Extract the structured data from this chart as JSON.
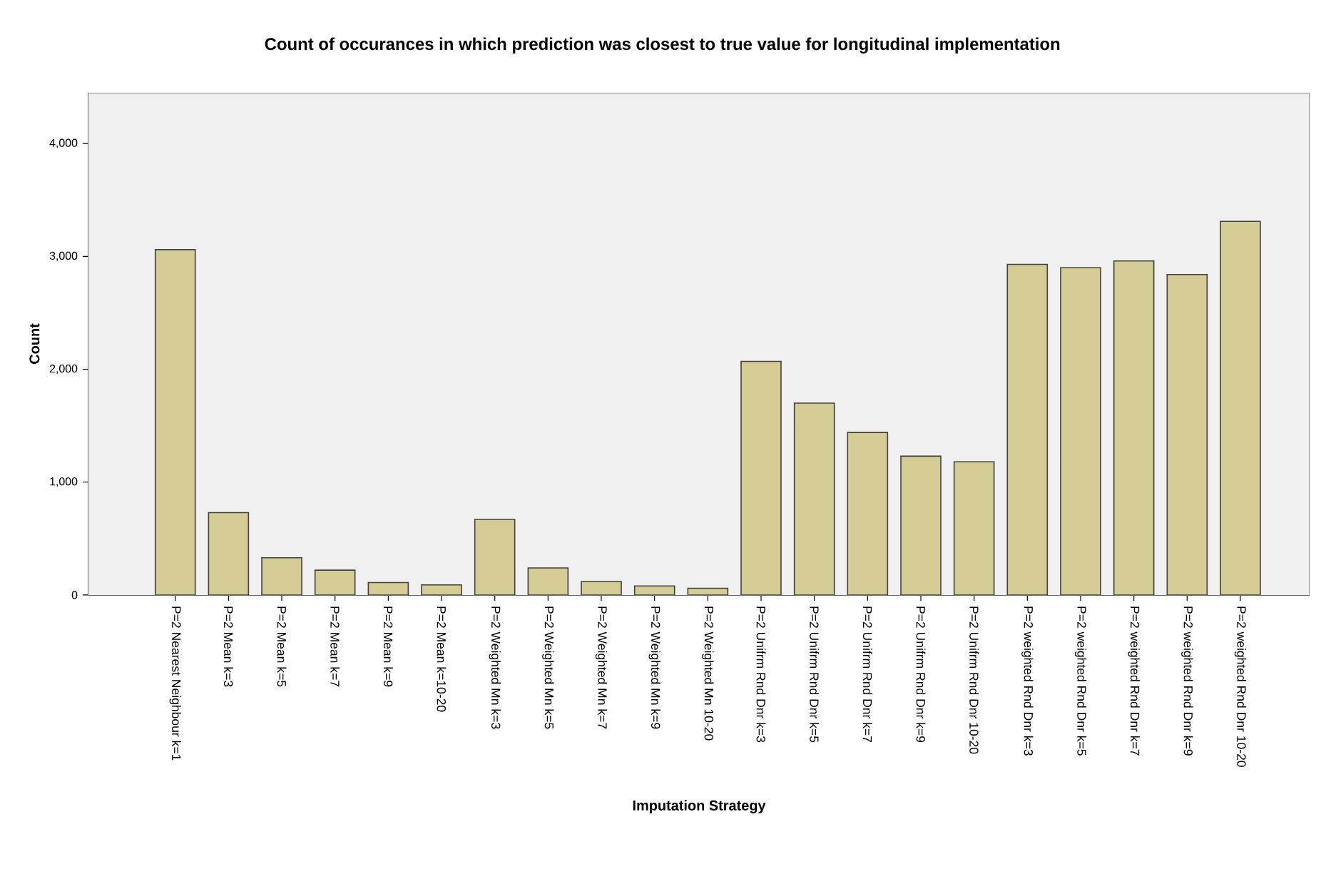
{
  "chart_data": {
    "type": "bar",
    "title": "Count of occurances in which prediction was closest to true value for longitudinal implementation",
    "xlabel": "Imputation Strategy",
    "ylabel": "Count",
    "categories": [
      "P=2 Nearest Neighbour k=1",
      "P=2 Mean k=3",
      "P=2 Mean k=5",
      "P=2 Mean k=7",
      "P=2 Mean k=9",
      "P=2 Mean k=10-20",
      "P=2 Weighted Mn k=3",
      "P=2 Weighted Mn k=5",
      "P=2 Weighted Mn k=7",
      "P=2 Weighted Mn  k=9",
      "P=2 Weighted Mn  10-20",
      "P=2 Unifrm Rnd Dnr k=3",
      "P=2 Unifrm Rnd Dnr k=5",
      "P=2 Unifrm Rnd Dnr k=7",
      "P=2 Unifrm Rnd Dnr k=9",
      "P=2 Unifrm Rnd Dnr  10-20",
      "P=2 weighted Rnd Dnr k=3",
      "P=2 weighted Rnd Dnr k=5",
      "P=2 weighted Rnd Dnr k=7",
      "P=2 weighted Rnd Dnr k=9",
      "P=2 weighted Rnd Dnr  10-20"
    ],
    "values": [
      3060,
      730,
      330,
      220,
      110,
      90,
      670,
      240,
      120,
      80,
      60,
      2070,
      1700,
      1440,
      1230,
      1180,
      2930,
      2900,
      2960,
      2840,
      3310
    ],
    "color": "#d4cc94",
    "ylim": [
      0,
      4450
    ],
    "yticks": [
      0,
      {
        "value": 1000,
        "label": "1,000"
      },
      {
        "value": 2000,
        "label": "2,000"
      },
      {
        "value": 3000,
        "label": "3,000"
      },
      {
        "value": 4000,
        "label": "4,000"
      }
    ]
  }
}
